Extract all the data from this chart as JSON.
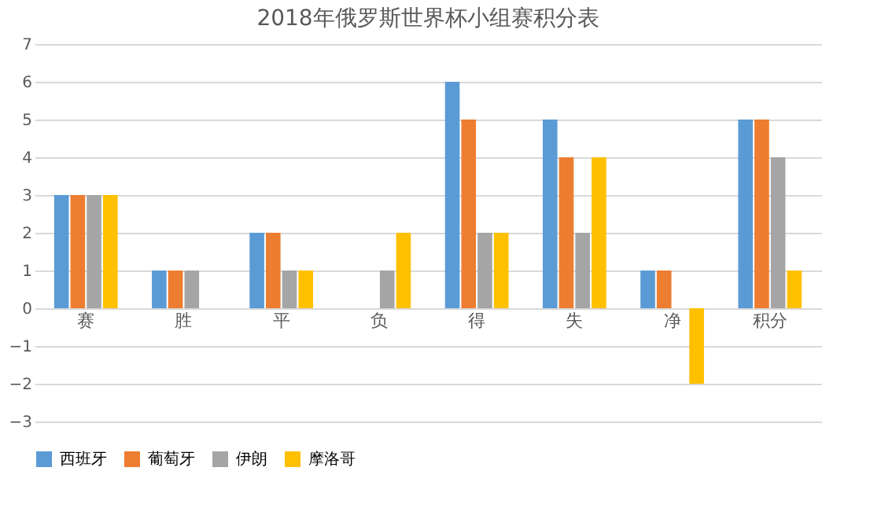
{
  "chart_data": {
    "type": "bar",
    "title": "2018年俄罗斯世界杯小组赛积分表",
    "categories": [
      "赛",
      "胜",
      "平",
      "负",
      "得",
      "失",
      "净",
      "积分"
    ],
    "series": [
      {
        "name": "西班牙",
        "color": "#5b9bd5",
        "values": [
          3,
          1,
          2,
          0,
          6,
          5,
          1,
          5
        ]
      },
      {
        "name": "葡萄牙",
        "color": "#ed7d31",
        "values": [
          3,
          1,
          2,
          0,
          5,
          4,
          1,
          5
        ]
      },
      {
        "name": "伊朗",
        "color": "#a5a5a5",
        "values": [
          3,
          1,
          1,
          1,
          2,
          2,
          0,
          4
        ]
      },
      {
        "name": "摩洛哥",
        "color": "#ffc000",
        "values": [
          3,
          0,
          1,
          2,
          2,
          4,
          -2,
          1
        ]
      }
    ],
    "ylim": [
      -3,
      7
    ],
    "yticks": [
      -3,
      -2,
      -1,
      0,
      1,
      2,
      3,
      4,
      5,
      6,
      7
    ],
    "grid": "y",
    "legend": "bottom"
  }
}
